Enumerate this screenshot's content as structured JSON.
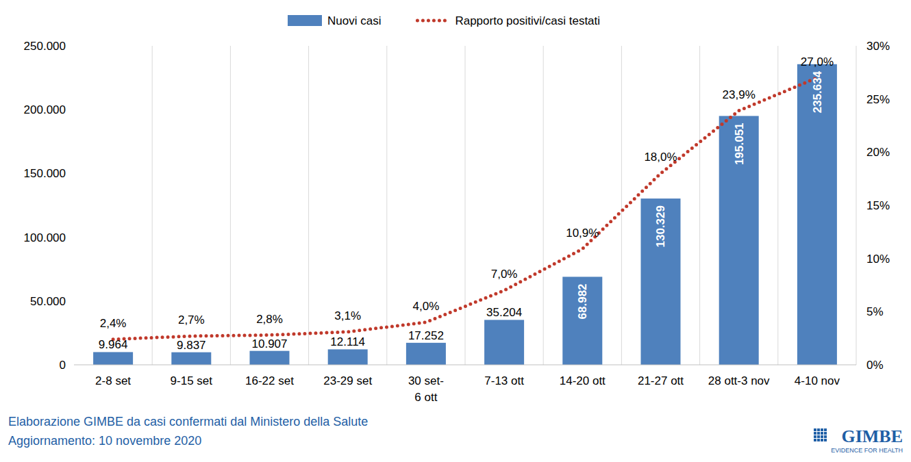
{
  "chart_data": {
    "type": "bar",
    "categories": [
      "2-8 set",
      "9-15 set",
      "16-22 set",
      "23-29 set",
      "30 set-\n6 ott",
      "7-13 ott",
      "14-20 ott",
      "21-27 ott",
      "28 ott-3 nov",
      "4-10 nov"
    ],
    "series": [
      {
        "name": "Nuovi casi",
        "type": "bar",
        "color": "#4f81bd",
        "values": [
          9964,
          9837,
          10907,
          12114,
          17252,
          35204,
          68982,
          130329,
          195051,
          235634
        ],
        "value_labels": [
          "9.964",
          "9.837",
          "10.907",
          "12.114",
          "17.252",
          "35.204",
          "68.982",
          "130.329",
          "195.051",
          "235.634"
        ]
      },
      {
        "name": "Rapporto positivi/casi testati",
        "type": "line",
        "axis": "y2",
        "color": "#c0392b",
        "line_style": "dotted",
        "values": [
          2.4,
          2.7,
          2.8,
          3.1,
          4.0,
          7.0,
          10.9,
          18.0,
          23.9,
          27.0
        ],
        "value_labels": [
          "2,4%",
          "2,7%",
          "2,8%",
          "3,1%",
          "4,0%",
          "7,0%",
          "10,9%",
          "18,0%",
          "23,9%",
          "27,0%"
        ]
      }
    ],
    "ylim": [
      0,
      250000
    ],
    "yticks": [
      0,
      {
        "value": 50000,
        "label": "50.000"
      },
      {
        "value": 100000,
        "label": "100.000"
      },
      {
        "value": 150000,
        "label": "150.000"
      },
      {
        "value": 200000,
        "label": "200.000"
      },
      {
        "value": 250000,
        "label": "250.000"
      }
    ],
    "y2lim": [
      0,
      30
    ],
    "y2ticks": [
      {
        "value": 0,
        "label": "0%"
      },
      {
        "value": 5,
        "label": "5%"
      },
      {
        "value": 10,
        "label": "10%"
      },
      {
        "value": 15,
        "label": "15%"
      },
      {
        "value": 20,
        "label": "20%"
      },
      {
        "value": 25,
        "label": "25%"
      },
      {
        "value": 30,
        "label": "30%"
      }
    ],
    "grid": true,
    "legend": "top",
    "data_labels": true,
    "annotations": [
      "Elaborazione GIMBE da casi confermati dal Ministero della Salute",
      "Aggiornamento: 10 novembre 2020",
      "GIMBE",
      "EVIDENCE FOR HEALTH"
    ]
  }
}
